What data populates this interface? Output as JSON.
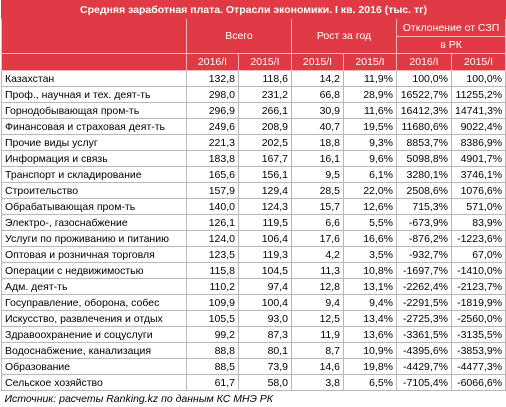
{
  "title": "Средняя заработная плата. Отрасли экономики. I кв. 2016 (тыс. тг)",
  "groups": {
    "total": "Всего",
    "growth": "Рост за год",
    "deviation_line1": "Отклонение от СЗП",
    "deviation_line2": "в РК"
  },
  "subheaders": [
    "2016/I",
    "2015/I",
    "2015/I",
    "2015/I",
    "2016/I",
    "2015/I"
  ],
  "rows": [
    {
      "name": "Казахстан",
      "v2016": "132,8",
      "v2015": "118,6",
      "abs": "14,2",
      "pct": "11,9%",
      "d2016": "100,0%",
      "d2015": "100,0%"
    },
    {
      "name": "Проф., научная и тех. деят-ть",
      "v2016": "298,0",
      "v2015": "231,2",
      "abs": "66,8",
      "pct": "28,9%",
      "d2016": "16522,7%",
      "d2015": "11255,2%"
    },
    {
      "name": "Горнодобывающая пром-ть",
      "v2016": "296,9",
      "v2015": "266,1",
      "abs": "30,9",
      "pct": "11,6%",
      "d2016": "16412,3%",
      "d2015": "14741,3%"
    },
    {
      "name": "Финансовая и страховая деят-ть",
      "v2016": "249,6",
      "v2015": "208,9",
      "abs": "40,7",
      "pct": "19,5%",
      "d2016": "11680,6%",
      "d2015": "9022,4%"
    },
    {
      "name": "Прочие виды услуг",
      "v2016": "221,3",
      "v2015": "202,5",
      "abs": "18,8",
      "pct": "9,3%",
      "d2016": "8853,7%",
      "d2015": "8386,9%"
    },
    {
      "name": "Информация и связь",
      "v2016": "183,8",
      "v2015": "167,7",
      "abs": "16,1",
      "pct": "9,6%",
      "d2016": "5098,8%",
      "d2015": "4901,7%"
    },
    {
      "name": "Транспорт и складирование",
      "v2016": "165,6",
      "v2015": "156,1",
      "abs": "9,5",
      "pct": "6,1%",
      "d2016": "3280,1%",
      "d2015": "3746,1%"
    },
    {
      "name": "Строительство",
      "v2016": "157,9",
      "v2015": "129,4",
      "abs": "28,5",
      "pct": "22,0%",
      "d2016": "2508,6%",
      "d2015": "1076,6%"
    },
    {
      "name": "Обрабатывающая пром-ть",
      "v2016": "140,0",
      "v2015": "124,3",
      "abs": "15,7",
      "pct": "12,6%",
      "d2016": "715,3%",
      "d2015": "571,0%"
    },
    {
      "name": "Электро-, газоснабжение",
      "v2016": "126,1",
      "v2015": "119,5",
      "abs": "6,6",
      "pct": "5,5%",
      "d2016": "-673,9%",
      "d2015": "83,9%"
    },
    {
      "name": "Услуги по проживанию и питанию",
      "v2016": "124,0",
      "v2015": "106,4",
      "abs": "17,6",
      "pct": "16,6%",
      "d2016": "-876,2%",
      "d2015": "-1223,6%"
    },
    {
      "name": "Оптовая и розничная торговля",
      "v2016": "123,5",
      "v2015": "119,3",
      "abs": "4,2",
      "pct": "3,5%",
      "d2016": "-932,7%",
      "d2015": "67,0%"
    },
    {
      "name": "Операции с недвижимостью",
      "v2016": "115,8",
      "v2015": "104,5",
      "abs": "11,3",
      "pct": "10,8%",
      "d2016": "-1697,7%",
      "d2015": "-1410,0%"
    },
    {
      "name": "Адм. деят-ть",
      "v2016": "110,2",
      "v2015": "97,4",
      "abs": "12,8",
      "pct": "13,1%",
      "d2016": "-2262,4%",
      "d2015": "-2123,7%"
    },
    {
      "name": "Госуправление, оборона, собес",
      "v2016": "109,9",
      "v2015": "100,4",
      "abs": "9,4",
      "pct": "9,4%",
      "d2016": "-2291,5%",
      "d2015": "-1819,9%"
    },
    {
      "name": "Искусство, развлечения и отдых",
      "v2016": "105,5",
      "v2015": "93,0",
      "abs": "12,5",
      "pct": "13,4%",
      "d2016": "-2725,3%",
      "d2015": "-2560,0%"
    },
    {
      "name": "Здравоохранение и соцуслуги",
      "v2016": "99,2",
      "v2015": "87,3",
      "abs": "11,9",
      "pct": "13,6%",
      "d2016": "-3361,5%",
      "d2015": "-3135,5%"
    },
    {
      "name": "Водоснабжение, канализация",
      "v2016": "88,8",
      "v2015": "80,1",
      "abs": "8,7",
      "pct": "10,9%",
      "d2016": "-4395,6%",
      "d2015": "-3853,9%"
    },
    {
      "name": "Образование",
      "v2016": "88,5",
      "v2015": "73,9",
      "abs": "14,6",
      "pct": "19,8%",
      "d2016": "-4429,7%",
      "d2015": "-4477,3%"
    },
    {
      "name": "Сельское хозяйство",
      "v2016": "61,7",
      "v2015": "58,0",
      "abs": "3,8",
      "pct": "6,5%",
      "d2016": "-7105,4%",
      "d2015": "-6066,6%"
    }
  ],
  "source": "Источник: расчеты Ranking.kz по данным КС МНЭ РК",
  "colors": {
    "header_bg": "#e23a44",
    "header_text": "#ffffff",
    "grid": "#b8b8b8"
  }
}
